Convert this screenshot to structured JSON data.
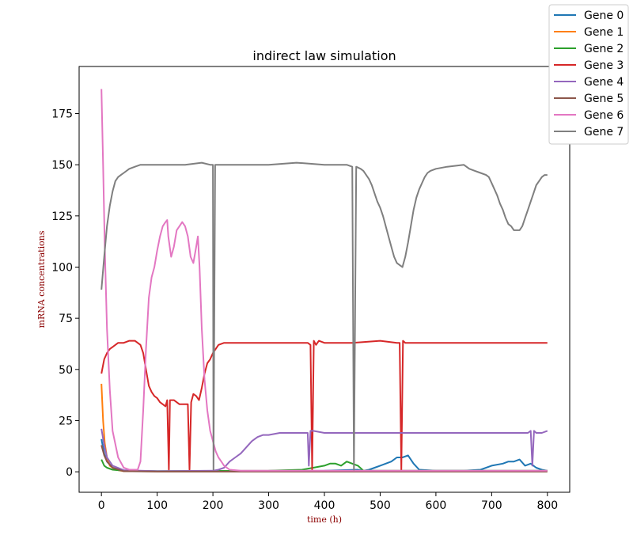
{
  "chart_data": {
    "type": "line",
    "title": "indirect law simulation",
    "xlabel": "time (h)",
    "ylabel": "mRNA concentrations",
    "xlim": [
      -40,
      840
    ],
    "ylim": [
      -10,
      198
    ],
    "xticks": [
      0,
      100,
      200,
      300,
      400,
      500,
      600,
      700,
      800
    ],
    "yticks": [
      0,
      25,
      50,
      75,
      100,
      125,
      150,
      175
    ],
    "legend_position": "top-right",
    "series": [
      {
        "name": "Gene 0",
        "color": "#1f77b4",
        "points": [
          [
            0,
            16
          ],
          [
            5,
            9
          ],
          [
            10,
            5
          ],
          [
            20,
            2
          ],
          [
            40,
            0.5
          ],
          [
            100,
            0.3
          ],
          [
            200,
            0.3
          ],
          [
            300,
            0.3
          ],
          [
            400,
            0.5
          ],
          [
            460,
            1
          ],
          [
            470,
            0.5
          ],
          [
            480,
            1
          ],
          [
            490,
            2
          ],
          [
            500,
            3
          ],
          [
            510,
            4
          ],
          [
            520,
            5
          ],
          [
            530,
            7
          ],
          [
            540,
            7
          ],
          [
            550,
            8
          ],
          [
            560,
            4
          ],
          [
            570,
            1
          ],
          [
            600,
            0.5
          ],
          [
            650,
            0.5
          ],
          [
            680,
            1
          ],
          [
            700,
            3
          ],
          [
            720,
            4
          ],
          [
            730,
            5
          ],
          [
            740,
            5
          ],
          [
            750,
            6
          ],
          [
            760,
            3
          ],
          [
            770,
            4
          ],
          [
            780,
            2
          ],
          [
            790,
            1
          ],
          [
            800,
            0.5
          ]
        ]
      },
      {
        "name": "Gene 1",
        "color": "#ff7f0e",
        "points": [
          [
            0,
            43
          ],
          [
            3,
            25
          ],
          [
            6,
            14
          ],
          [
            10,
            7
          ],
          [
            15,
            3
          ],
          [
            25,
            1
          ],
          [
            40,
            0.3
          ],
          [
            100,
            0.2
          ],
          [
            800,
            0.2
          ]
        ]
      },
      {
        "name": "Gene 2",
        "color": "#2ca02c",
        "points": [
          [
            0,
            6
          ],
          [
            5,
            3
          ],
          [
            10,
            2
          ],
          [
            20,
            1
          ],
          [
            40,
            0.5
          ],
          [
            100,
            0.3
          ],
          [
            300,
            0.5
          ],
          [
            360,
            1
          ],
          [
            380,
            2
          ],
          [
            400,
            3
          ],
          [
            410,
            4
          ],
          [
            420,
            4
          ],
          [
            430,
            3
          ],
          [
            440,
            5
          ],
          [
            450,
            4
          ],
          [
            460,
            3
          ],
          [
            470,
            0.5
          ],
          [
            600,
            0.5
          ],
          [
            800,
            0.5
          ]
        ]
      },
      {
        "name": "Gene 3",
        "color": "#d62728",
        "points": [
          [
            0,
            48
          ],
          [
            5,
            55
          ],
          [
            10,
            58
          ],
          [
            15,
            60
          ],
          [
            20,
            61
          ],
          [
            25,
            62
          ],
          [
            30,
            63
          ],
          [
            40,
            63
          ],
          [
            50,
            64
          ],
          [
            60,
            64
          ],
          [
            65,
            63
          ],
          [
            70,
            62
          ],
          [
            75,
            58
          ],
          [
            80,
            50
          ],
          [
            85,
            42
          ],
          [
            90,
            39
          ],
          [
            95,
            37
          ],
          [
            100,
            36
          ],
          [
            105,
            34
          ],
          [
            110,
            33
          ],
          [
            115,
            32
          ],
          [
            118,
            35
          ],
          [
            121,
            1
          ],
          [
            123,
            35
          ],
          [
            130,
            35
          ],
          [
            135,
            34
          ],
          [
            140,
            33
          ],
          [
            150,
            33
          ],
          [
            155,
            33
          ],
          [
            158,
            1
          ],
          [
            161,
            34
          ],
          [
            165,
            38
          ],
          [
            170,
            37
          ],
          [
            175,
            35
          ],
          [
            180,
            41
          ],
          [
            185,
            48
          ],
          [
            190,
            53
          ],
          [
            195,
            55
          ],
          [
            200,
            58
          ],
          [
            210,
            62
          ],
          [
            220,
            63
          ],
          [
            250,
            63
          ],
          [
            300,
            63
          ],
          [
            350,
            63
          ],
          [
            370,
            63
          ],
          [
            375,
            62
          ],
          [
            378,
            1
          ],
          [
            381,
            64
          ],
          [
            385,
            62
          ],
          [
            390,
            64
          ],
          [
            400,
            63
          ],
          [
            450,
            63
          ],
          [
            500,
            64
          ],
          [
            530,
            63
          ],
          [
            535,
            63
          ],
          [
            538,
            1
          ],
          [
            541,
            64
          ],
          [
            545,
            63
          ],
          [
            600,
            63
          ],
          [
            650,
            63
          ],
          [
            700,
            63
          ],
          [
            750,
            63
          ],
          [
            800,
            63
          ]
        ]
      },
      {
        "name": "Gene 4",
        "color": "#9467bd",
        "points": [
          [
            0,
            21
          ],
          [
            5,
            13
          ],
          [
            10,
            7
          ],
          [
            20,
            3
          ],
          [
            40,
            0.8
          ],
          [
            100,
            0.3
          ],
          [
            200,
            0.5
          ],
          [
            210,
            1
          ],
          [
            220,
            2
          ],
          [
            230,
            5
          ],
          [
            240,
            7
          ],
          [
            250,
            9
          ],
          [
            260,
            12
          ],
          [
            270,
            15
          ],
          [
            280,
            17
          ],
          [
            290,
            18
          ],
          [
            300,
            18
          ],
          [
            320,
            19
          ],
          [
            340,
            19
          ],
          [
            360,
            19
          ],
          [
            370,
            19
          ],
          [
            372,
            3
          ],
          [
            375,
            20
          ],
          [
            380,
            20
          ],
          [
            400,
            19
          ],
          [
            450,
            19
          ],
          [
            500,
            19
          ],
          [
            550,
            19
          ],
          [
            600,
            19
          ],
          [
            650,
            19
          ],
          [
            700,
            19
          ],
          [
            765,
            19
          ],
          [
            770,
            20
          ],
          [
            773,
            3
          ],
          [
            776,
            20
          ],
          [
            780,
            19
          ],
          [
            790,
            19
          ],
          [
            800,
            20
          ]
        ]
      },
      {
        "name": "Gene 5",
        "color": "#8c564b",
        "points": [
          [
            0,
            13
          ],
          [
            5,
            8
          ],
          [
            10,
            5
          ],
          [
            20,
            2
          ],
          [
            40,
            0.3
          ],
          [
            100,
            0.1
          ],
          [
            800,
            0.1
          ]
        ]
      },
      {
        "name": "Gene 6",
        "color": "#e377c2",
        "points": [
          [
            0,
            187
          ],
          [
            3,
            150
          ],
          [
            6,
            110
          ],
          [
            10,
            70
          ],
          [
            15,
            40
          ],
          [
            20,
            20
          ],
          [
            30,
            7
          ],
          [
            40,
            2
          ],
          [
            50,
            1
          ],
          [
            60,
            1
          ],
          [
            65,
            1
          ],
          [
            70,
            5
          ],
          [
            75,
            30
          ],
          [
            80,
            60
          ],
          [
            85,
            85
          ],
          [
            90,
            95
          ],
          [
            95,
            100
          ],
          [
            100,
            108
          ],
          [
            105,
            115
          ],
          [
            110,
            120
          ],
          [
            115,
            122
          ],
          [
            118,
            123
          ],
          [
            120,
            115
          ],
          [
            125,
            105
          ],
          [
            130,
            110
          ],
          [
            135,
            118
          ],
          [
            140,
            120
          ],
          [
            145,
            122
          ],
          [
            150,
            120
          ],
          [
            155,
            115
          ],
          [
            160,
            105
          ],
          [
            165,
            102
          ],
          [
            170,
            110
          ],
          [
            173,
            115
          ],
          [
            176,
            100
          ],
          [
            180,
            70
          ],
          [
            185,
            45
          ],
          [
            190,
            30
          ],
          [
            195,
            20
          ],
          [
            200,
            15
          ],
          [
            205,
            10
          ],
          [
            210,
            7
          ],
          [
            215,
            5
          ],
          [
            220,
            3
          ],
          [
            230,
            1
          ],
          [
            250,
            0.5
          ],
          [
            300,
            0.5
          ],
          [
            400,
            0.5
          ],
          [
            500,
            0.5
          ],
          [
            600,
            0.5
          ],
          [
            700,
            0.5
          ],
          [
            800,
            0.5
          ]
        ]
      },
      {
        "name": "Gene 7",
        "color": "#7f7f7f",
        "points": [
          [
            0,
            89
          ],
          [
            5,
            105
          ],
          [
            10,
            120
          ],
          [
            15,
            130
          ],
          [
            20,
            137
          ],
          [
            25,
            142
          ],
          [
            30,
            144
          ],
          [
            35,
            145
          ],
          [
            40,
            146
          ],
          [
            50,
            148
          ],
          [
            60,
            149
          ],
          [
            70,
            150
          ],
          [
            100,
            150
          ],
          [
            150,
            150
          ],
          [
            180,
            151
          ],
          [
            195,
            150
          ],
          [
            200,
            150
          ],
          [
            201,
            1
          ],
          [
            204,
            150
          ],
          [
            210,
            150
          ],
          [
            250,
            150
          ],
          [
            300,
            150
          ],
          [
            350,
            151
          ],
          [
            400,
            150
          ],
          [
            440,
            150
          ],
          [
            450,
            149
          ],
          [
            453,
            1
          ],
          [
            457,
            149
          ],
          [
            465,
            148
          ],
          [
            470,
            147
          ],
          [
            475,
            145
          ],
          [
            480,
            143
          ],
          [
            485,
            140
          ],
          [
            490,
            136
          ],
          [
            495,
            132
          ],
          [
            500,
            129
          ],
          [
            505,
            125
          ],
          [
            510,
            120
          ],
          [
            515,
            115
          ],
          [
            520,
            110
          ],
          [
            525,
            105
          ],
          [
            530,
            102
          ],
          [
            535,
            101
          ],
          [
            540,
            100
          ],
          [
            545,
            105
          ],
          [
            550,
            112
          ],
          [
            555,
            120
          ],
          [
            560,
            128
          ],
          [
            565,
            134
          ],
          [
            570,
            138
          ],
          [
            575,
            141
          ],
          [
            580,
            144
          ],
          [
            585,
            146
          ],
          [
            590,
            147
          ],
          [
            600,
            148
          ],
          [
            620,
            149
          ],
          [
            650,
            150
          ],
          [
            660,
            148
          ],
          [
            670,
            147
          ],
          [
            680,
            146
          ],
          [
            690,
            145
          ],
          [
            695,
            144
          ],
          [
            700,
            141
          ],
          [
            705,
            138
          ],
          [
            710,
            135
          ],
          [
            715,
            131
          ],
          [
            720,
            128
          ],
          [
            725,
            124
          ],
          [
            730,
            121
          ],
          [
            735,
            120
          ],
          [
            740,
            118
          ],
          [
            745,
            118
          ],
          [
            750,
            118
          ],
          [
            755,
            120
          ],
          [
            760,
            124
          ],
          [
            765,
            128
          ],
          [
            770,
            132
          ],
          [
            775,
            136
          ],
          [
            780,
            140
          ],
          [
            785,
            142
          ],
          [
            790,
            144
          ],
          [
            795,
            145
          ],
          [
            800,
            145
          ]
        ]
      }
    ]
  }
}
